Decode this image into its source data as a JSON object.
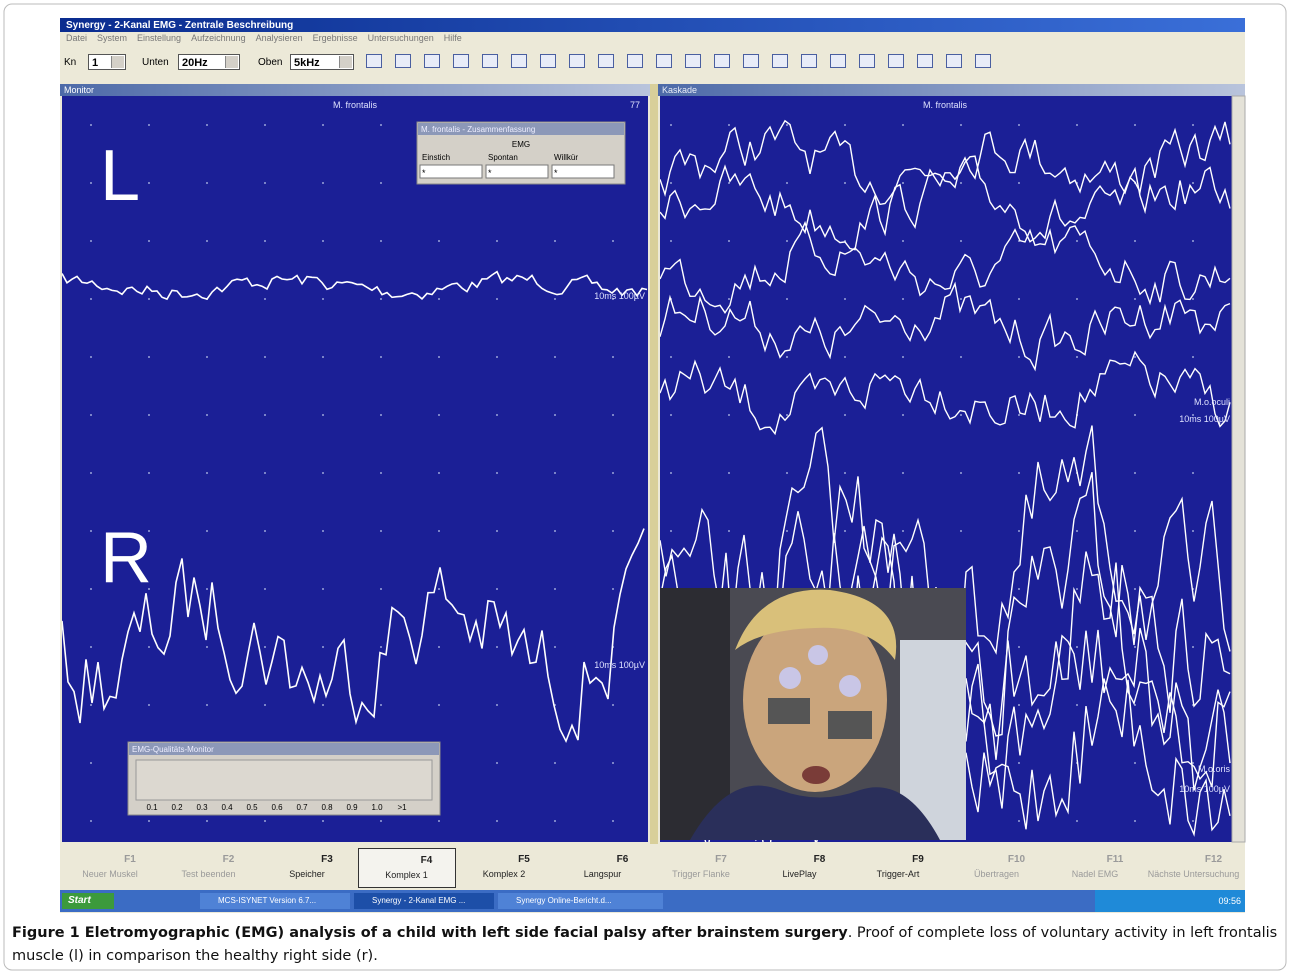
{
  "window": {
    "title": "Synergy - 2-Kanal EMG - Zentrale Beschreibung",
    "menu": [
      "Datei",
      "System",
      "Einstellung",
      "Aufzeichnung",
      "Analysieren",
      "Ergebnisse",
      "Untersuchungen",
      "Hilfe"
    ],
    "toolbar": {
      "kn_label": "Kn",
      "kn_value": "1",
      "low_label": "Unten",
      "low_value": "20Hz",
      "high_label": "Oben",
      "high_value": "5kHz"
    }
  },
  "left_panel": {
    "title": "Monitor",
    "muscle": "M. frontalis",
    "count": "77",
    "side_top": "L",
    "side_bottom": "R",
    "scale_top": "10ms 100µV",
    "scale_bottom": "10ms 100µV",
    "popup": {
      "title": "M. frontalis - Zusammenfassung",
      "header": "EMG",
      "columns": [
        "Einstich",
        "Spontan",
        "Willkür"
      ],
      "values": [
        "*",
        "*",
        "*"
      ]
    },
    "quality": {
      "title": "EMG-Qualitäts-Monitor",
      "scale": [
        "0.1",
        "0.2",
        "0.3",
        "0.4",
        "0.5",
        "0.6",
        "0.7",
        "0.8",
        "0.9",
        "1.0",
        ">1"
      ]
    }
  },
  "right_panel": {
    "title": "Kaskade",
    "muscle": "M. frontalis",
    "label_upper": "M.o.oculi",
    "scale_upper": "10ms 100µV",
    "label_lower": "M.o.oris",
    "scale_lower": "10ms 100µV"
  },
  "function_keys": [
    {
      "label": "Neuer Muskel",
      "key": "F1"
    },
    {
      "label": "Test beenden",
      "key": "F2"
    },
    {
      "label": "Speicher",
      "key": "F3"
    },
    {
      "label": "Komplex 1",
      "key": "F4"
    },
    {
      "label": "Komplex 2",
      "key": "F5"
    },
    {
      "label": "Langspur",
      "key": "F6"
    },
    {
      "label": "Trigger Flanke",
      "key": "F7"
    },
    {
      "label": "LivePlay",
      "key": "F8"
    },
    {
      "label": "Trigger-Art",
      "key": "F9"
    },
    {
      "label": "Übertragen",
      "key": "F10"
    },
    {
      "label": "Nadel EMG",
      "key": "F11"
    },
    {
      "label": "Nächste Untersuchung",
      "key": "F12"
    }
  ],
  "taskbar": {
    "start": "Start",
    "items": [
      "MCS-ISYNET Version 6.7...",
      "Synergy - 2-Kanal EMG ...",
      "Synergy Online-Bericht.d..."
    ],
    "clock": "09:56"
  },
  "caption": {
    "bold": "Figure 1 Eletromyographic (EMG) analysis of a child with left side facial palsy after brainstem surgery",
    "text": ". Proof of complete loss of voluntary activity in left frontalis muscle (l) in comparison the healthy right side (r)."
  }
}
